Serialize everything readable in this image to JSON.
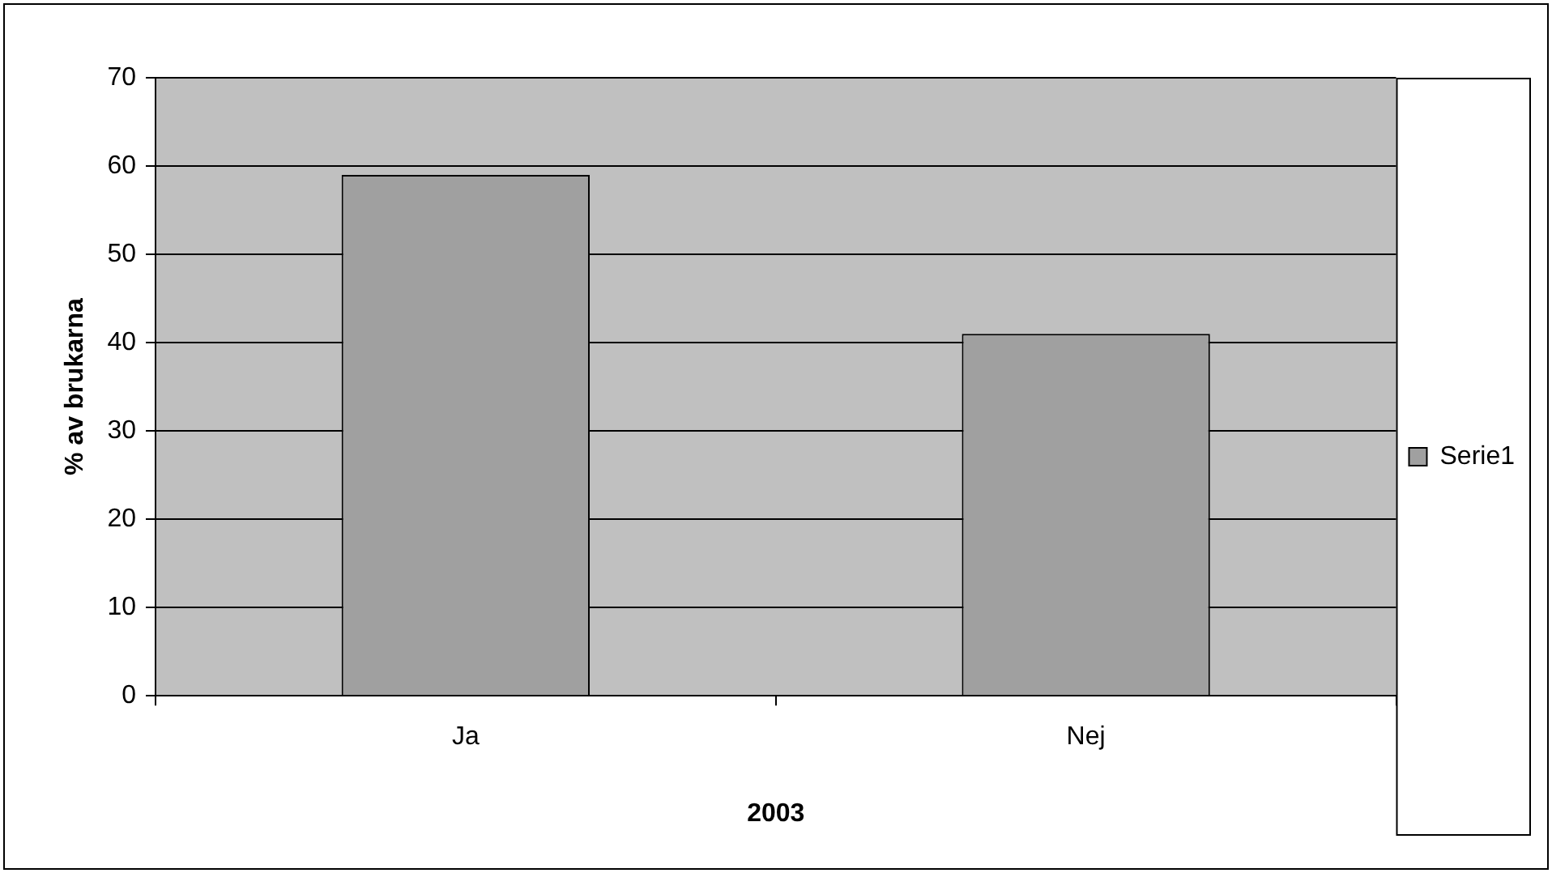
{
  "chart_data": {
    "type": "bar",
    "xlabel": "2003",
    "ylabel": "% av brukarna",
    "categories": [
      "Ja",
      "Nej"
    ],
    "series": [
      {
        "name": "Serie1",
        "color": "#a0a0a0",
        "values": [
          59,
          41
        ]
      }
    ],
    "ylim": [
      0,
      70
    ],
    "yticks": [
      0,
      10,
      20,
      30,
      40,
      50,
      60,
      70
    ],
    "grid": "y",
    "legend": "right"
  }
}
